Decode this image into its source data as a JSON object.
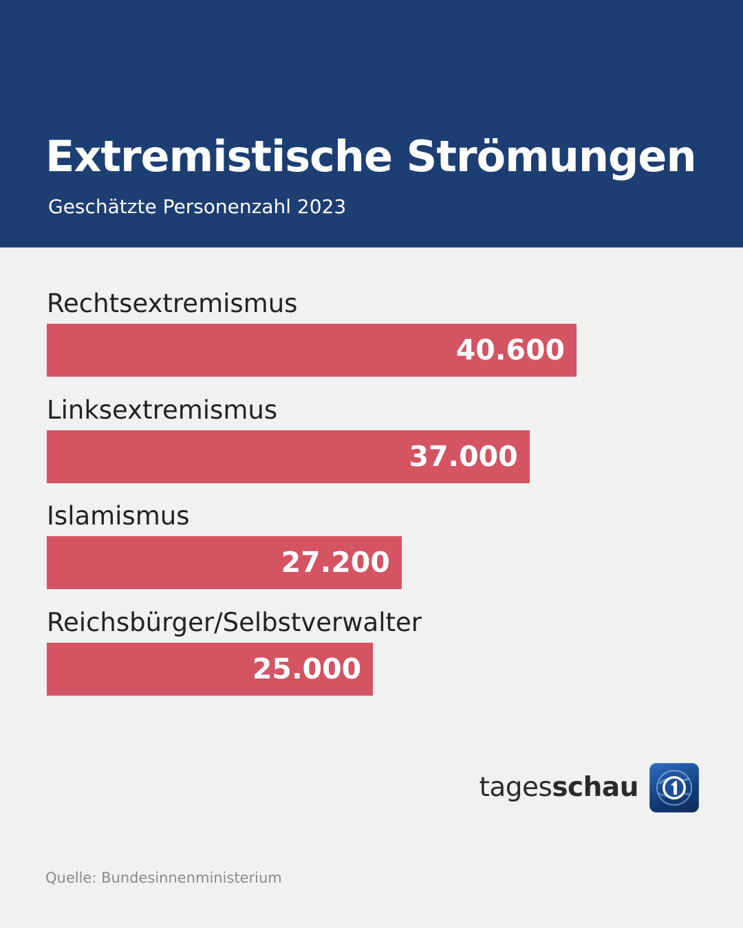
{
  "header": {
    "title": "Extremistische Strömungen",
    "subtitle": "Geschätzte Personenzahl 2023"
  },
  "chart_data": {
    "type": "bar",
    "orientation": "horizontal",
    "title": "Extremistische Strömungen",
    "subtitle": "Geschätzte Personenzahl 2023",
    "categories": [
      "Rechtsextremismus",
      "Linksextremismus",
      "Islamismus",
      "Reichsbürger/Selbstverwalter"
    ],
    "values": [
      40600,
      37000,
      27200,
      25000
    ],
    "value_labels": [
      "40.600",
      "37.000",
      "27.200",
      "25.000"
    ],
    "bar_color": "#d45463",
    "xlabel": "",
    "ylabel": "",
    "grid": false,
    "legend": "none"
  },
  "branding": {
    "brand_regular": "tages",
    "brand_bold": "schau",
    "logo_icon": "tagesschau-one-logo-icon",
    "header_color": "#1d3e72"
  },
  "footer": {
    "source": "Quelle: Bundesinnenministerium"
  }
}
